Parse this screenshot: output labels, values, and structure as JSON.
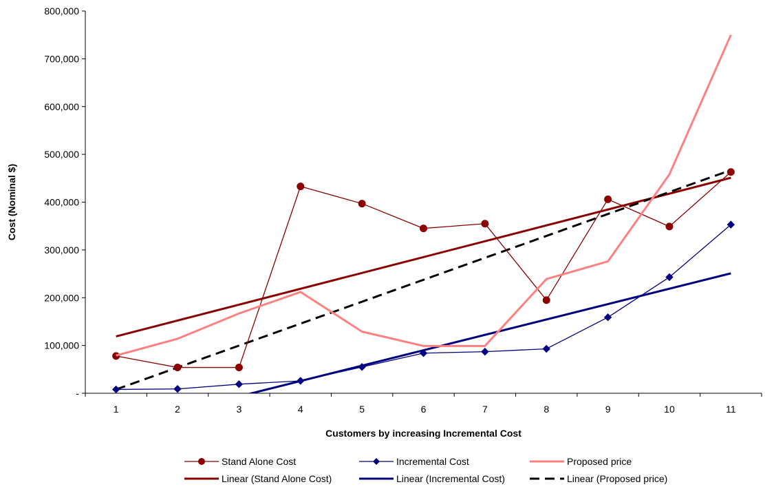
{
  "chart_data": {
    "type": "line",
    "title": "",
    "xlabel": "Customers by increasing Incremental Cost",
    "ylabel": "Cost (Nominal $)",
    "categories": [
      "1",
      "2",
      "3",
      "4",
      "5",
      "6",
      "7",
      "8",
      "9",
      "10",
      "11"
    ],
    "ylim": [
      0,
      800000
    ],
    "yticks": [
      {
        "value": 0,
        "label": "-"
      },
      {
        "value": 100000,
        "label": "100,000"
      },
      {
        "value": 200000,
        "label": "200,000"
      },
      {
        "value": 300000,
        "label": "300,000"
      },
      {
        "value": 400000,
        "label": "400,000"
      },
      {
        "value": 500000,
        "label": "500,000"
      },
      {
        "value": 600000,
        "label": "600,000"
      },
      {
        "value": 700000,
        "label": "700,000"
      },
      {
        "value": 800000,
        "label": "800,000"
      }
    ],
    "grid": false,
    "legend_position": "bottom",
    "series": [
      {
        "name": "Stand Alone Cost",
        "color": "#8B0000",
        "marker": "circle",
        "style": "solid",
        "values": [
          78000,
          54000,
          54000,
          433000,
          397000,
          345000,
          355000,
          195000,
          406000,
          349000,
          463000
        ]
      },
      {
        "name": "Incremental Cost",
        "color": "#000080",
        "marker": "diamond",
        "style": "solid",
        "values": [
          8000,
          9000,
          19000,
          26000,
          55000,
          84000,
          87000,
          93000,
          159000,
          243000,
          353000
        ]
      },
      {
        "name": "Proposed price",
        "color": "#FF8080",
        "marker": "none",
        "style": "solid",
        "values": [
          79000,
          114000,
          167000,
          212000,
          129000,
          99000,
          99000,
          239000,
          276000,
          458000,
          750000
        ]
      }
    ],
    "trendlines": [
      {
        "name": "Linear (Stand Alone Cost)",
        "color": "#8B0000",
        "style": "solid",
        "start": 119000,
        "end": 451000
      },
      {
        "name": "Linear (Incremental Cost)",
        "color": "#000080",
        "style": "solid",
        "start": -71000,
        "end": 251000,
        "clip_min": 0
      },
      {
        "name": "Linear (Proposed price)",
        "color": "#000000",
        "style": "dashed",
        "start": 8000,
        "end": 467000
      }
    ]
  }
}
